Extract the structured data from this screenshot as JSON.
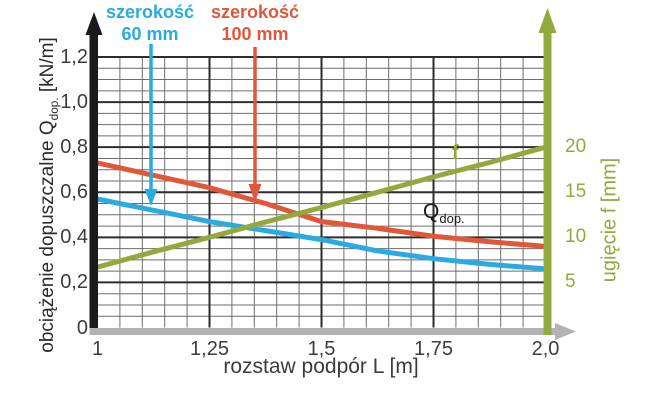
{
  "page": {
    "background": "#ffffff"
  },
  "legend": {
    "items": [
      {
        "line1": "szerokość",
        "line2": "60 mm",
        "series": "Q60"
      },
      {
        "line1": "szerokość",
        "line2": "100 mm",
        "series": "Q100"
      }
    ]
  },
  "annotations": {
    "q_main": "Q",
    "q_sub": "dop.",
    "f_label": "f"
  },
  "axes": {
    "x": {
      "title": "rozstaw podpór L [m]",
      "ticks": [
        {
          "label": "1",
          "value": 1
        },
        {
          "label": "1,25",
          "value": 1.25
        },
        {
          "label": "1,5",
          "value": 1.5
        },
        {
          "label": "1,75",
          "value": 1.75
        },
        {
          "label": "2,0",
          "value": 2
        }
      ],
      "range": [
        1,
        2
      ]
    },
    "y_left": {
      "title_prefix": "obciążenie dopuszczalne Q",
      "title_sub": "dop.",
      "title_suffix": " [kN/m]",
      "ticks": [
        {
          "label": "0",
          "value": 0
        },
        {
          "label": "0,2",
          "value": 0.2
        },
        {
          "label": "0,4",
          "value": 0.4
        },
        {
          "label": "0,6",
          "value": 0.6
        },
        {
          "label": "0,8",
          "value": 0.8
        },
        {
          "label": "1,0",
          "value": 1.0
        },
        {
          "label": "1,2",
          "value": 1.2
        }
      ],
      "range": [
        0,
        1.2
      ]
    },
    "y_right": {
      "title": "ugięcie f [mm]",
      "ticks": [
        {
          "label": "5",
          "value_mm": 5
        },
        {
          "label": "10",
          "value_mm": 10
        },
        {
          "label": "15",
          "value_mm": 15
        },
        {
          "label": "20",
          "value_mm": 20
        }
      ],
      "mm_per_left_unit": 25
    }
  },
  "chart_data": {
    "type": "line",
    "x": [
      1,
      1.125,
      1.25,
      1.375,
      1.5,
      1.625,
      1.75,
      1.875,
      2.0
    ],
    "xlabel": "rozstaw podpór L [m]",
    "ylabel_left": "obciążenie dopuszczalne Qdop. [kN/m]",
    "ylabel_right": "ugięcie f [mm]",
    "xlim": [
      1,
      2
    ],
    "ylim_left": [
      0,
      1.2
    ],
    "ylim_right_mm": [
      0,
      30
    ],
    "grid": {
      "minor_step_x": 0.05,
      "minor_step_y": 0.05,
      "major_step_x": 0.25,
      "major_step_y": 0.2,
      "grid_on": true
    },
    "legend_position": "top-left-arrows",
    "series": [
      {
        "id": "Q60",
        "name": "szerokość 60 mm",
        "axis": "left",
        "color": "#29abe2",
        "values": [
          0.57,
          0.52,
          0.47,
          0.43,
          0.39,
          0.34,
          0.305,
          0.28,
          0.26
        ]
      },
      {
        "id": "Q100",
        "name": "szerokość 100 mm",
        "axis": "left",
        "color": "#e0573a",
        "values": [
          0.73,
          0.675,
          0.62,
          0.55,
          0.47,
          0.44,
          0.405,
          0.38,
          0.36
        ]
      },
      {
        "id": "f",
        "name": "ugięcie f",
        "axis": "right",
        "color": "#93a93d",
        "values_mm": [
          6.7,
          8.4,
          10,
          11.7,
          13.3,
          15,
          16.7,
          18.3,
          20
        ]
      }
    ]
  },
  "colors": {
    "grid_minor": "#6e6e6e",
    "grid_major": "#2d2d2d",
    "axis_black": "#1a1a1a",
    "axis_gray": "#b3b3b3",
    "tick_text": "#3c3c3b"
  }
}
